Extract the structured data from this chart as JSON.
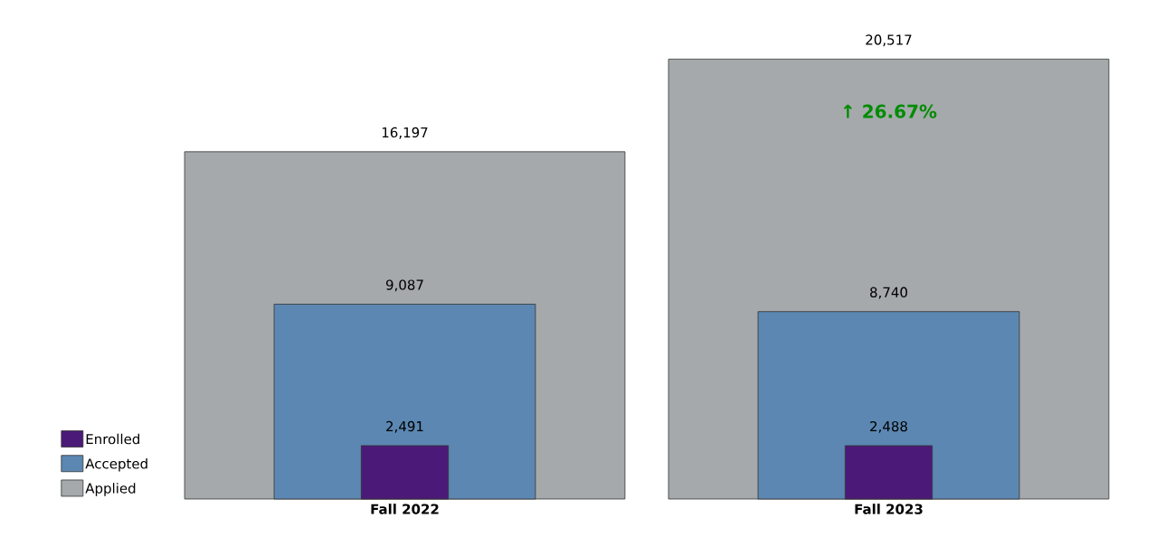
{
  "chart_data": {
    "type": "bar",
    "categories": [
      "Fall 2022",
      "Fall 2023"
    ],
    "series": [
      {
        "name": "Enrolled",
        "color": "#4b1a78",
        "values": [
          2491,
          2488
        ],
        "value_labels": [
          "2,491",
          "2,488"
        ]
      },
      {
        "name": "Accepted",
        "color": "#5b87b2",
        "values": [
          9087,
          8740
        ],
        "value_labels": [
          "9,087",
          "8,740"
        ]
      },
      {
        "name": "Applied",
        "color": "#a5a9ac",
        "values": [
          16197,
          20517
        ],
        "value_labels": [
          "16,197",
          "20,517"
        ]
      }
    ],
    "annotations": [
      "↑ 26.67%"
    ],
    "legend": "left bottom"
  }
}
